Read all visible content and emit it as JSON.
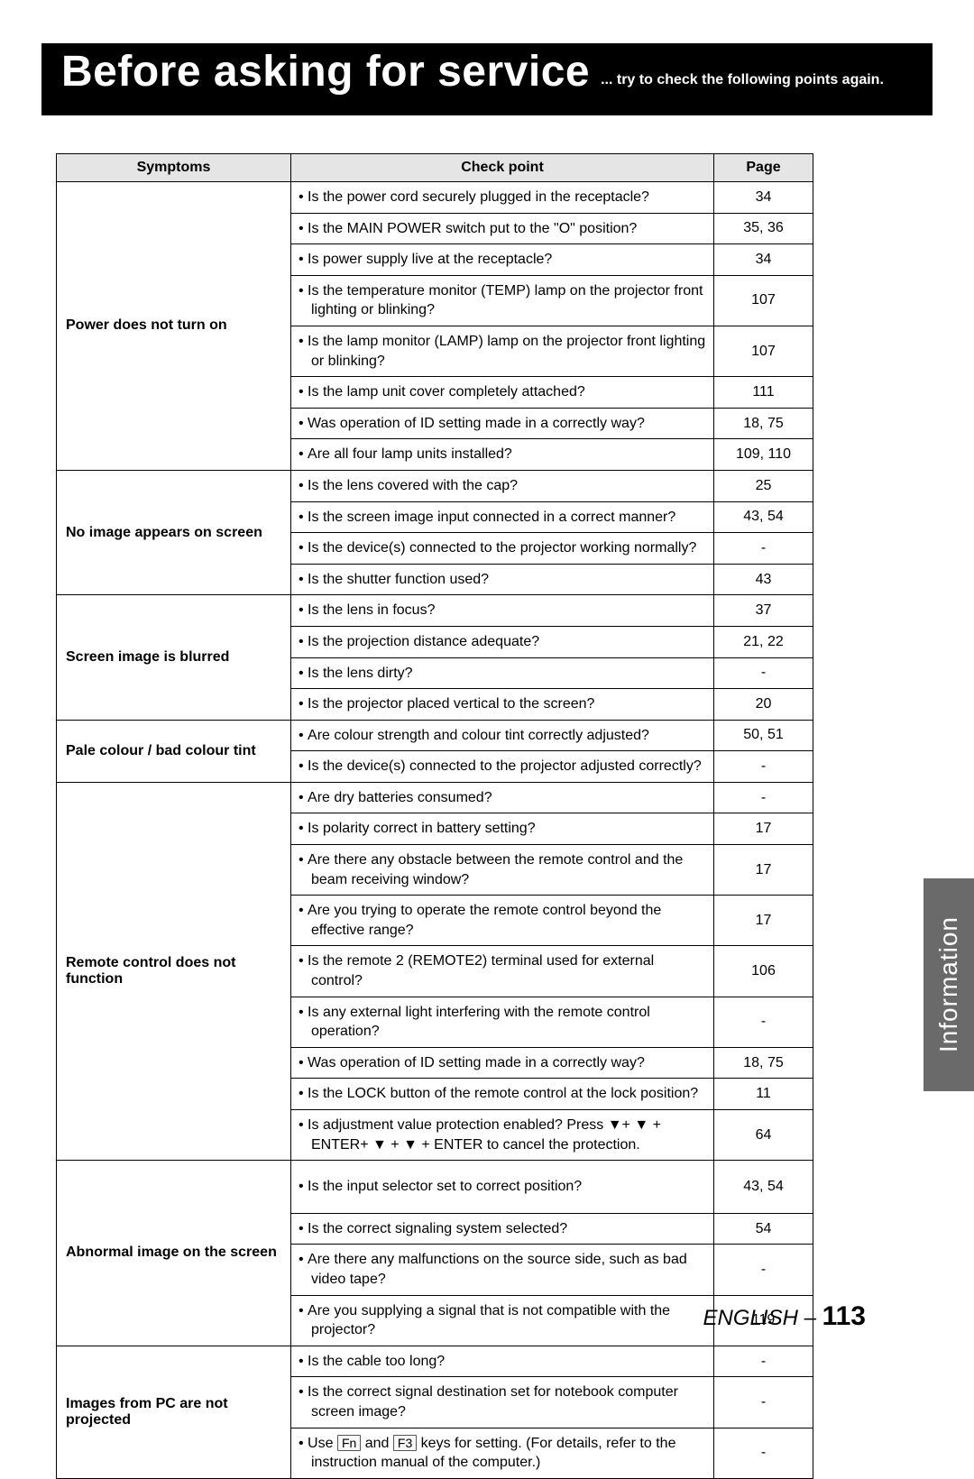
{
  "header": {
    "title": "Before asking for service",
    "subtitle": "... try to check the following points again."
  },
  "columns": {
    "c1": "Symptoms",
    "c2": "Check point",
    "c3": "Page"
  },
  "sections": [
    {
      "symptom": "Power does not turn on",
      "rows": [
        {
          "text": "Is the power cord securely plugged in the receptacle?",
          "page": "34"
        },
        {
          "text": "Is the MAIN POWER switch put to the \"O\" position?",
          "page": "35, 36"
        },
        {
          "text": "Is power supply live at the receptacle?",
          "page": "34"
        },
        {
          "text": "Is the temperature monitor (TEMP) lamp on the projector front lighting or blinking?",
          "page": "107"
        },
        {
          "text": "Is the lamp monitor (LAMP) lamp on the projector front lighting or blinking?",
          "page": "107"
        },
        {
          "text": "Is the lamp unit cover completely attached?",
          "page": "111"
        },
        {
          "text": "Was operation of ID setting made in a correctly way?",
          "page": "18, 75"
        },
        {
          "text": "Are all four lamp units installed?",
          "page": "109, 110"
        }
      ]
    },
    {
      "symptom": "No image appears on screen",
      "rows": [
        {
          "text": "Is the lens covered with the cap?",
          "page": "25"
        },
        {
          "text": "Is the screen image input connected in a correct manner?",
          "page": "43, 54"
        },
        {
          "text": "Is the device(s) connected to the projector working normally?",
          "page": "-"
        },
        {
          "text": "Is the shutter function used?",
          "page": "43"
        }
      ]
    },
    {
      "symptom": "Screen image is blurred",
      "rows": [
        {
          "text": "Is the lens in focus?",
          "page": "37"
        },
        {
          "text": "Is the projection distance adequate?",
          "page": "21, 22"
        },
        {
          "text": "Is the lens dirty?",
          "page": "-"
        },
        {
          "text": "Is the projector placed vertical to the screen?",
          "page": "20"
        }
      ]
    },
    {
      "symptom": "Pale colour / bad colour tint",
      "rows": [
        {
          "text": "Are colour strength and colour tint correctly adjusted?",
          "page": "50, 51"
        },
        {
          "text": "Is the device(s) connected to the projector adjusted correctly?",
          "page": "-"
        }
      ]
    },
    {
      "symptom": "Remote control does not function",
      "rows": [
        {
          "text": "Are dry batteries consumed?",
          "page": "-"
        },
        {
          "text": "Is polarity correct in battery setting?",
          "page": "17"
        },
        {
          "text": "Are there any obstacle between the remote control and the beam receiving window?",
          "page": "17"
        },
        {
          "text": "Are you trying to operate the remote control beyond the effective range?",
          "page": "17"
        },
        {
          "text": "Is the remote 2 (REMOTE2) terminal used for external control?",
          "page": "106"
        },
        {
          "text": "Is any external light interfering with the remote control operation?",
          "page": "-"
        },
        {
          "text": "Was operation of ID setting made in a correctly way?",
          "page": "18, 75"
        },
        {
          "text": "Is the LOCK button of the remote control at the lock position?",
          "page": "11"
        },
        {
          "text": "Is adjustment value protection enabled?  Press ▼+ ▼ + ENTER+ ▼ + ▼ + ENTER to cancel the protection.",
          "page": "64"
        }
      ]
    },
    {
      "symptom": "Abnormal image on the screen",
      "rows": [
        {
          "text": "Is the input selector set to correct position?",
          "page": "43, 54",
          "tall": true
        },
        {
          "text": "Is the correct signaling system selected?",
          "page": "54"
        },
        {
          "text": "Are there any malfunctions on the source side, such as bad video tape?",
          "page": "-"
        },
        {
          "text": "Are you supplying a signal that is not compatible with the projector?",
          "page": "119"
        }
      ]
    },
    {
      "symptom": "Images from PC are not projected",
      "rows": [
        {
          "text": "Is the cable too long?",
          "page": "-"
        },
        {
          "text": "Is the correct signal destination set for notebook computer screen image?",
          "page": "-"
        },
        {
          "text_html": true,
          "text": "Use |Fn| and |F3| keys for setting. (For details, refer to the instruction manual of the computer.)",
          "page": "-"
        }
      ]
    }
  ],
  "side_tab": "Information",
  "footer": {
    "lang": "ENGLISH – ",
    "page": "113"
  }
}
